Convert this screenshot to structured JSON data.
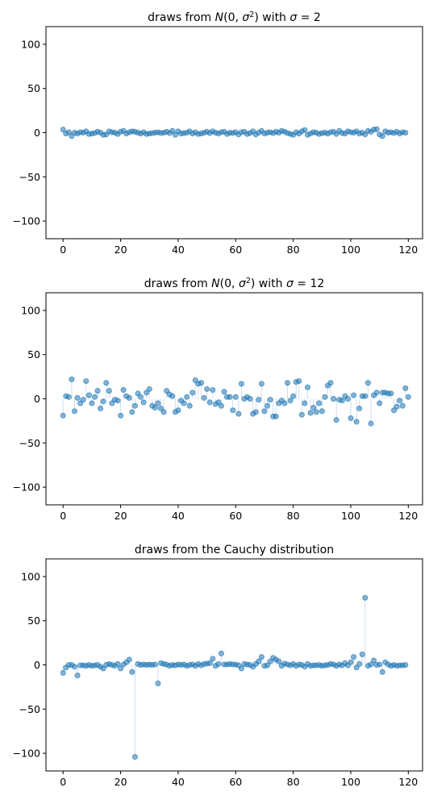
{
  "chart_data": [
    {
      "type": "scatter",
      "title": "draws from N(0, σ²) with σ = 2",
      "title_parts": {
        "prefix": "draws from ",
        "N": "N",
        "open": "(0, ",
        "sigma": "σ",
        "sup": "2",
        "close": ") with ",
        "eq": " = 2"
      },
      "xlim": [
        -5.95,
        124.95
      ],
      "ylim": [
        -120,
        120
      ],
      "xticks": [
        0,
        20,
        40,
        60,
        80,
        100,
        120
      ],
      "yticks": [
        -100,
        -50,
        0,
        50,
        100
      ],
      "xtick_labels": [
        "0",
        "20",
        "40",
        "60",
        "80",
        "100",
        "120"
      ],
      "ytick_labels": [
        "−100",
        "−50",
        "0",
        "50",
        "100"
      ],
      "grid": false,
      "colors": {
        "marker": "#1f77b4",
        "stem": "#aec7e8"
      },
      "x_start": 0,
      "values": [
        3.5,
        -1.0,
        0.5,
        -4.0,
        0.0,
        -1.0,
        0.5,
        0.0,
        1.5,
        -1.5,
        -1.0,
        -0.5,
        1.0,
        0.0,
        -2.5,
        -2.0,
        1.5,
        0.5,
        0.0,
        -1.5,
        1.0,
        2.0,
        -1.0,
        0.5,
        1.5,
        1.0,
        0.0,
        -1.0,
        0.5,
        -1.5,
        -1.0,
        -0.5,
        0.0,
        0.5,
        -0.5,
        0.0,
        1.0,
        -0.5,
        2.0,
        -2.5,
        1.5,
        -1.0,
        -0.5,
        0.0,
        1.5,
        -1.0,
        0.5,
        -1.5,
        -1.0,
        0.0,
        1.0,
        -0.5,
        1.5,
        0.0,
        -1.0,
        0.5,
        1.0,
        -1.5,
        0.0,
        -0.5,
        0.5,
        -2.0,
        0.5,
        1.0,
        -1.5,
        -0.5,
        1.5,
        -2.0,
        0.0,
        2.0,
        -1.0,
        0.0,
        0.5,
        -0.5,
        1.0,
        0.0,
        2.0,
        1.0,
        -0.5,
        -1.5,
        -2.5,
        0.5,
        -1.0,
        1.5,
        3.0,
        -2.5,
        -1.0,
        0.5,
        0.0,
        -1.5,
        -0.5,
        0.0,
        -1.0,
        0.5,
        1.0,
        -1.5,
        2.0,
        -0.5,
        -1.0,
        1.5,
        0.5,
        0.0,
        1.5,
        -1.0,
        0.0,
        -2.0,
        2.0,
        1.0,
        3.5,
        4.0,
        -2.0,
        -4.0,
        1.5,
        0.0,
        0.5,
        -0.5,
        1.0,
        -1.0,
        0.5,
        0.0
      ]
    },
    {
      "type": "scatter",
      "title": "draws from N(0, σ²) with σ = 12",
      "title_parts": {
        "prefix": "draws from ",
        "N": "N",
        "open": "(0, ",
        "sigma": "σ",
        "sup": "2",
        "close": ") with ",
        "eq": " = 12"
      },
      "xlim": [
        -5.95,
        124.95
      ],
      "ylim": [
        -120,
        120
      ],
      "xticks": [
        0,
        20,
        40,
        60,
        80,
        100,
        120
      ],
      "yticks": [
        -100,
        -50,
        0,
        50,
        100
      ],
      "xtick_labels": [
        "0",
        "20",
        "40",
        "60",
        "80",
        "100",
        "120"
      ],
      "ytick_labels": [
        "−100",
        "−50",
        "0",
        "50",
        "100"
      ],
      "grid": false,
      "colors": {
        "marker": "#1f77b4",
        "stem": "#aec7e8"
      },
      "x_start": 0,
      "values": [
        -19,
        3,
        2,
        22,
        -14,
        1,
        -5,
        -1,
        20,
        4,
        -5,
        2,
        9,
        -11,
        -3,
        18,
        9,
        -5,
        -1,
        -2,
        -19,
        10,
        3,
        1,
        -15,
        -8,
        6,
        2,
        -4,
        7,
        11,
        -8,
        -10,
        -5,
        -11,
        -15,
        9,
        5,
        3,
        -15,
        -13,
        -2,
        -5,
        2,
        -8,
        7,
        21,
        17,
        18,
        1,
        11,
        -4,
        10,
        -6,
        -4,
        -8,
        8,
        2,
        2,
        -13,
        2,
        -17,
        17,
        0,
        2,
        0,
        -17,
        -15,
        -1,
        17,
        -14,
        -8,
        -1,
        -20,
        -20,
        -5,
        -2,
        -5,
        18,
        -2,
        3,
        19,
        20,
        -18,
        -5,
        13,
        -16,
        -10,
        -15,
        -5,
        -14,
        2,
        15,
        18,
        0,
        -24,
        -1,
        -2,
        3,
        0,
        -22,
        4,
        -26,
        -11,
        3,
        3,
        18,
        -28,
        4,
        7,
        -5,
        7,
        7,
        6,
        6,
        -13,
        -9,
        -2,
        -8,
        12,
        2
      ]
    },
    {
      "type": "scatter",
      "title": "draws from the Cauchy distribution",
      "xlim": [
        -5.95,
        124.95
      ],
      "ylim": [
        -120,
        120
      ],
      "xticks": [
        0,
        20,
        40,
        60,
        80,
        100,
        120
      ],
      "yticks": [
        -100,
        -50,
        0,
        50,
        100
      ],
      "xtick_labels": [
        "0",
        "20",
        "40",
        "60",
        "80",
        "100",
        "120"
      ],
      "ytick_labels": [
        "−100",
        "−50",
        "0",
        "50",
        "100"
      ],
      "grid": false,
      "colors": {
        "marker": "#1f77b4",
        "stem": "#aec7e8"
      },
      "x_start": 0,
      "values": [
        -9,
        -3,
        0,
        0,
        -2,
        -12,
        -0.5,
        -0.5,
        -1,
        0,
        -1,
        -0.5,
        0,
        -2,
        -4,
        0,
        1,
        0,
        -1,
        1,
        -4,
        0.5,
        3,
        6,
        -8,
        -104,
        1,
        0,
        0.5,
        0,
        0.5,
        0,
        0.5,
        -21,
        2,
        1,
        0.5,
        -1,
        0,
        -0.5,
        0.5,
        0,
        0.5,
        -1,
        0,
        0.5,
        -1,
        1,
        -0.5,
        1,
        1.5,
        2,
        7,
        -1,
        1,
        13,
        0.5,
        0.5,
        1,
        0.5,
        0.5,
        -0.5,
        -4,
        1,
        0.5,
        0,
        -2,
        1,
        4,
        9,
        -1,
        -0.5,
        4,
        8,
        6,
        4,
        -1,
        1.5,
        0.5,
        -0.5,
        1,
        -1,
        0.5,
        0,
        -2,
        1,
        -1,
        -0.5,
        -0.5,
        0,
        -1,
        -0.5,
        0,
        1,
        0.5,
        -1,
        0.5,
        -0.5,
        2,
        -0.5,
        3,
        9,
        -3,
        1,
        12,
        76,
        -1,
        0.5,
        5,
        0,
        0.5,
        -8,
        3,
        0.5,
        -1,
        0,
        -1,
        -0.5,
        -0.5,
        0
      ]
    }
  ]
}
